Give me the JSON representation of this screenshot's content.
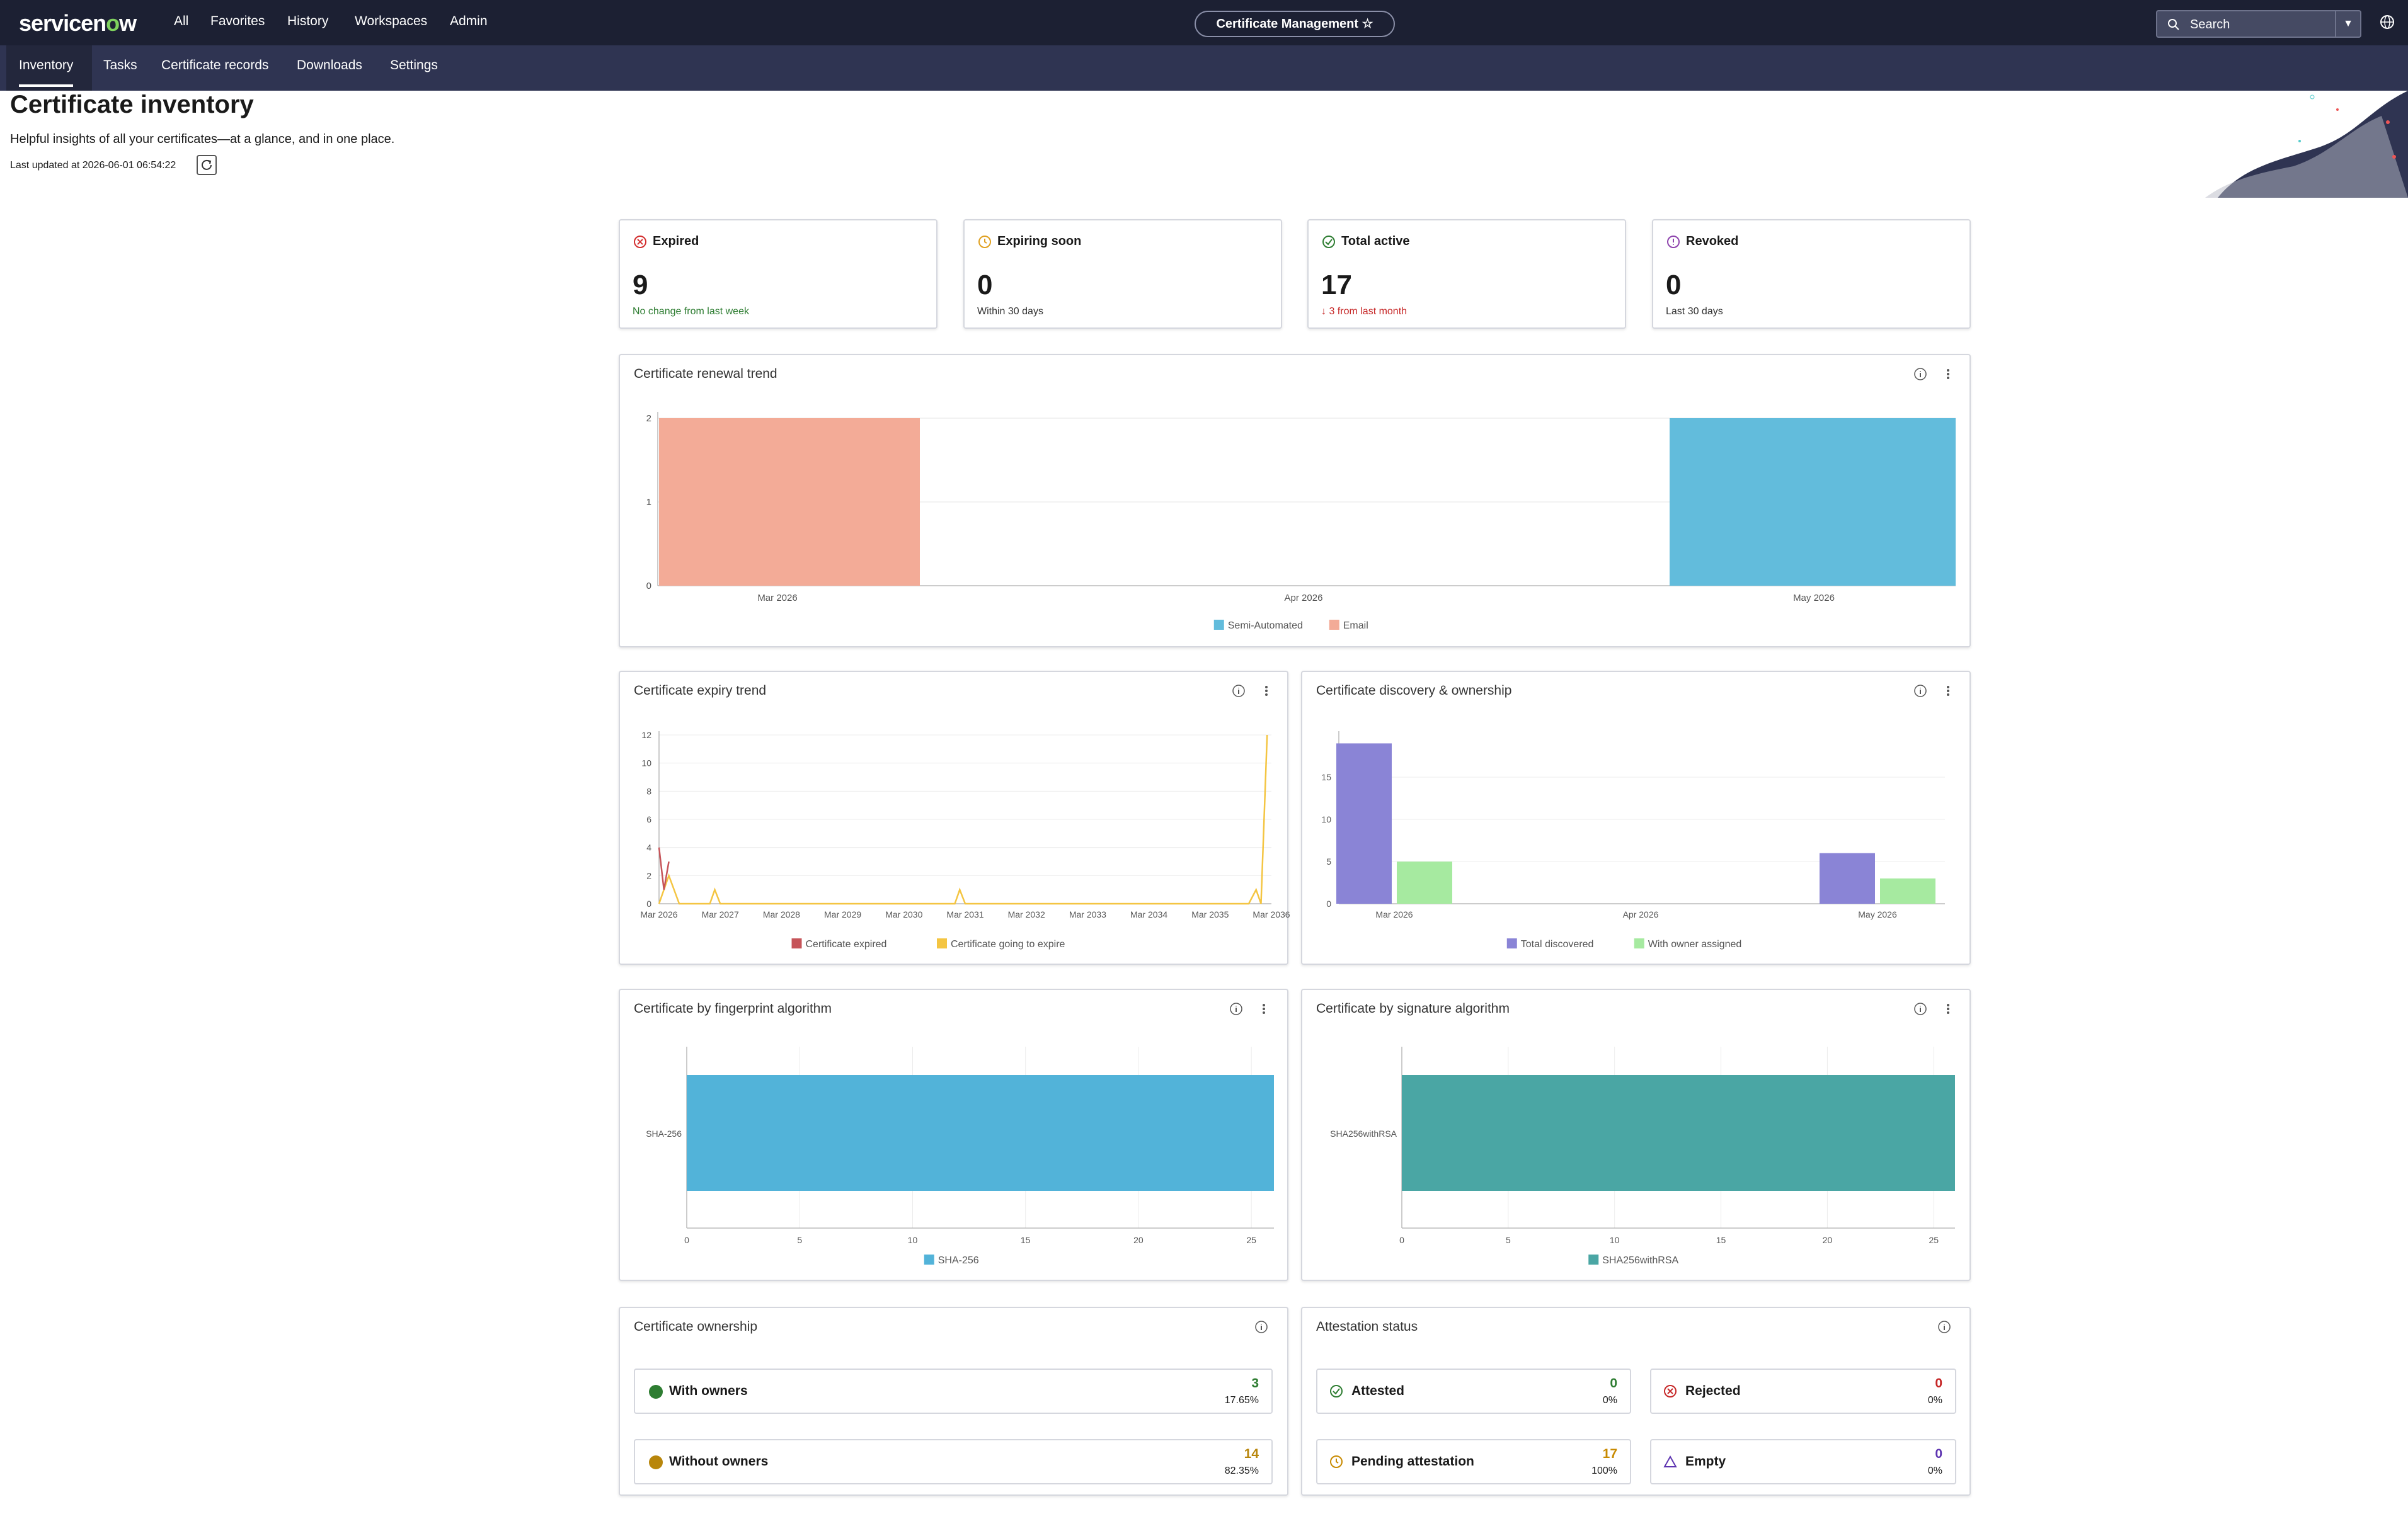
{
  "header": {
    "logo_text_1": "servicen",
    "logo_text_2": "o",
    "logo_text_3": "w",
    "nav": [
      "All",
      "Favorites",
      "History",
      "Workspaces",
      "Admin"
    ],
    "app_title": "Certificate Management",
    "search_placeholder": "Search"
  },
  "tabs": [
    "Inventory",
    "Tasks",
    "Certificate records",
    "Downloads",
    "Settings"
  ],
  "page": {
    "title": "Certificate inventory",
    "subtitle": "Helpful insights of all your certificates—at a glance, and in one place.",
    "last_updated": "Last updated at 2026-06-01 06:54:22"
  },
  "kpis": [
    {
      "title": "Expired",
      "value": "9",
      "note": "No change from last week",
      "note_color": "#2e7d32",
      "icon": "x-circle-icon",
      "icon_color": "#d32f2f"
    },
    {
      "title": "Expiring soon",
      "value": "0",
      "note": "Within 30 days",
      "note_color": "#333333",
      "icon": "clock-icon",
      "icon_color": "#e0a020"
    },
    {
      "title": "Total active",
      "value": "17",
      "note": "↓ 3 from last month",
      "note_color": "#c62828",
      "icon": "check-circle-icon",
      "icon_color": "#2e7d32"
    },
    {
      "title": "Revoked",
      "value": "0",
      "note": "Last 30 days",
      "note_color": "#333333",
      "icon": "alert-circle-icon",
      "icon_color": "#8e44ad"
    }
  ],
  "cards": {
    "renewal": "Certificate renewal trend",
    "expiry": "Certificate expiry trend",
    "discovery": "Certificate discovery & ownership",
    "fingerprint": "Certificate by fingerprint algorithm",
    "signature": "Certificate by signature algorithm",
    "ownership": "Certificate ownership",
    "attestation": "Attestation status"
  },
  "chart_data": [
    {
      "type": "bar",
      "title": "Certificate renewal trend",
      "categories": [
        "Mar 2026",
        "Apr 2026",
        "May 2026"
      ],
      "series": [
        {
          "name": "Semi-Automated",
          "color": "#62bcdc",
          "values": [
            0,
            0,
            2
          ]
        },
        {
          "name": "Email",
          "color": "#f3ab97",
          "values": [
            2,
            0,
            0
          ]
        }
      ],
      "ylim": [
        0,
        2
      ],
      "yticks": [
        "0",
        "1",
        "2"
      ],
      "legend": "bottom"
    },
    {
      "type": "line",
      "title": "Certificate expiry trend",
      "x_ticks": [
        "Mar 2026",
        "Mar 2027",
        "Mar 2028",
        "Mar 2029",
        "Mar 2030",
        "Mar 2031",
        "Mar 2032",
        "Mar 2033",
        "Mar 2034",
        "Mar 2035",
        "Mar 2036"
      ],
      "ylim": [
        0,
        12
      ],
      "yticks": [
        "0",
        "2",
        "4",
        "6",
        "8",
        "10",
        "12"
      ],
      "x_start_year": 2026.17,
      "series": [
        {
          "name": "Certificate expired",
          "color": "#c65459",
          "points": [
            [
              2026.17,
              4
            ],
            [
              2026.25,
              1
            ],
            [
              2026.33,
              3
            ]
          ]
        },
        {
          "name": "Certificate going to expire",
          "color": "#f4c542",
          "points": [
            [
              2026.17,
              0
            ],
            [
              2026.33,
              2
            ],
            [
              2026.5,
              0
            ],
            [
              2027.0,
              0
            ],
            [
              2027.08,
              1
            ],
            [
              2027.17,
              0
            ],
            [
              2031.0,
              0
            ],
            [
              2031.08,
              1
            ],
            [
              2031.17,
              0
            ],
            [
              2035.8,
              0
            ],
            [
              2035.92,
              1
            ],
            [
              2036.0,
              0
            ],
            [
              2036.1,
              12
            ]
          ]
        }
      ],
      "legend": "bottom"
    },
    {
      "type": "bar",
      "title": "Certificate discovery & ownership",
      "categories": [
        "Mar 2026",
        "Apr 2026",
        "May 2026"
      ],
      "series": [
        {
          "name": "Total discovered",
          "color": "#8a84d6",
          "values": [
            19,
            0,
            6
          ]
        },
        {
          "name": "With owner assigned",
          "color": "#a6eaa0",
          "values": [
            5,
            0,
            3
          ]
        }
      ],
      "ylim": [
        0,
        20
      ],
      "yticks": [
        "0",
        "5",
        "10",
        "15"
      ],
      "legend": "bottom"
    },
    {
      "type": "bar",
      "orientation": "horizontal",
      "title": "Certificate by fingerprint algorithm",
      "categories": [
        "SHA-256"
      ],
      "series": [
        {
          "name": "SHA-256",
          "color": "#52b3d9",
          "values": [
            26
          ]
        }
      ],
      "xlim": [
        0,
        26
      ],
      "xticks": [
        "0",
        "5",
        "10",
        "15",
        "20",
        "25"
      ],
      "legend": "bottom"
    },
    {
      "type": "bar",
      "orientation": "horizontal",
      "title": "Certificate by signature algorithm",
      "categories": [
        "SHA256withRSA"
      ],
      "series": [
        {
          "name": "SHA256withRSA",
          "color": "#4aa6a4",
          "values": [
            26
          ]
        }
      ],
      "xlim": [
        0,
        26
      ],
      "xticks": [
        "0",
        "5",
        "10",
        "15",
        "20",
        "25"
      ],
      "legend": "bottom"
    }
  ],
  "ownership": [
    {
      "label": "With owners",
      "count": "3",
      "pct": "17.65%",
      "color": "#2e7d32"
    },
    {
      "label": "Without owners",
      "count": "14",
      "pct": "82.35%",
      "color": "#b8860b"
    }
  ],
  "attestation": [
    {
      "label": "Attested",
      "count": "0",
      "pct": "0%",
      "color": "#2e7d32",
      "icon": "check-circle-icon"
    },
    {
      "label": "Rejected",
      "count": "0",
      "pct": "0%",
      "color": "#c62828",
      "icon": "x-circle-icon"
    },
    {
      "label": "Pending attestation",
      "count": "17",
      "pct": "100%",
      "color": "#c88a00",
      "icon": "clock-icon"
    },
    {
      "label": "Empty",
      "count": "0",
      "pct": "0%",
      "color": "#5e35b1",
      "icon": "triangle-icon"
    }
  ]
}
